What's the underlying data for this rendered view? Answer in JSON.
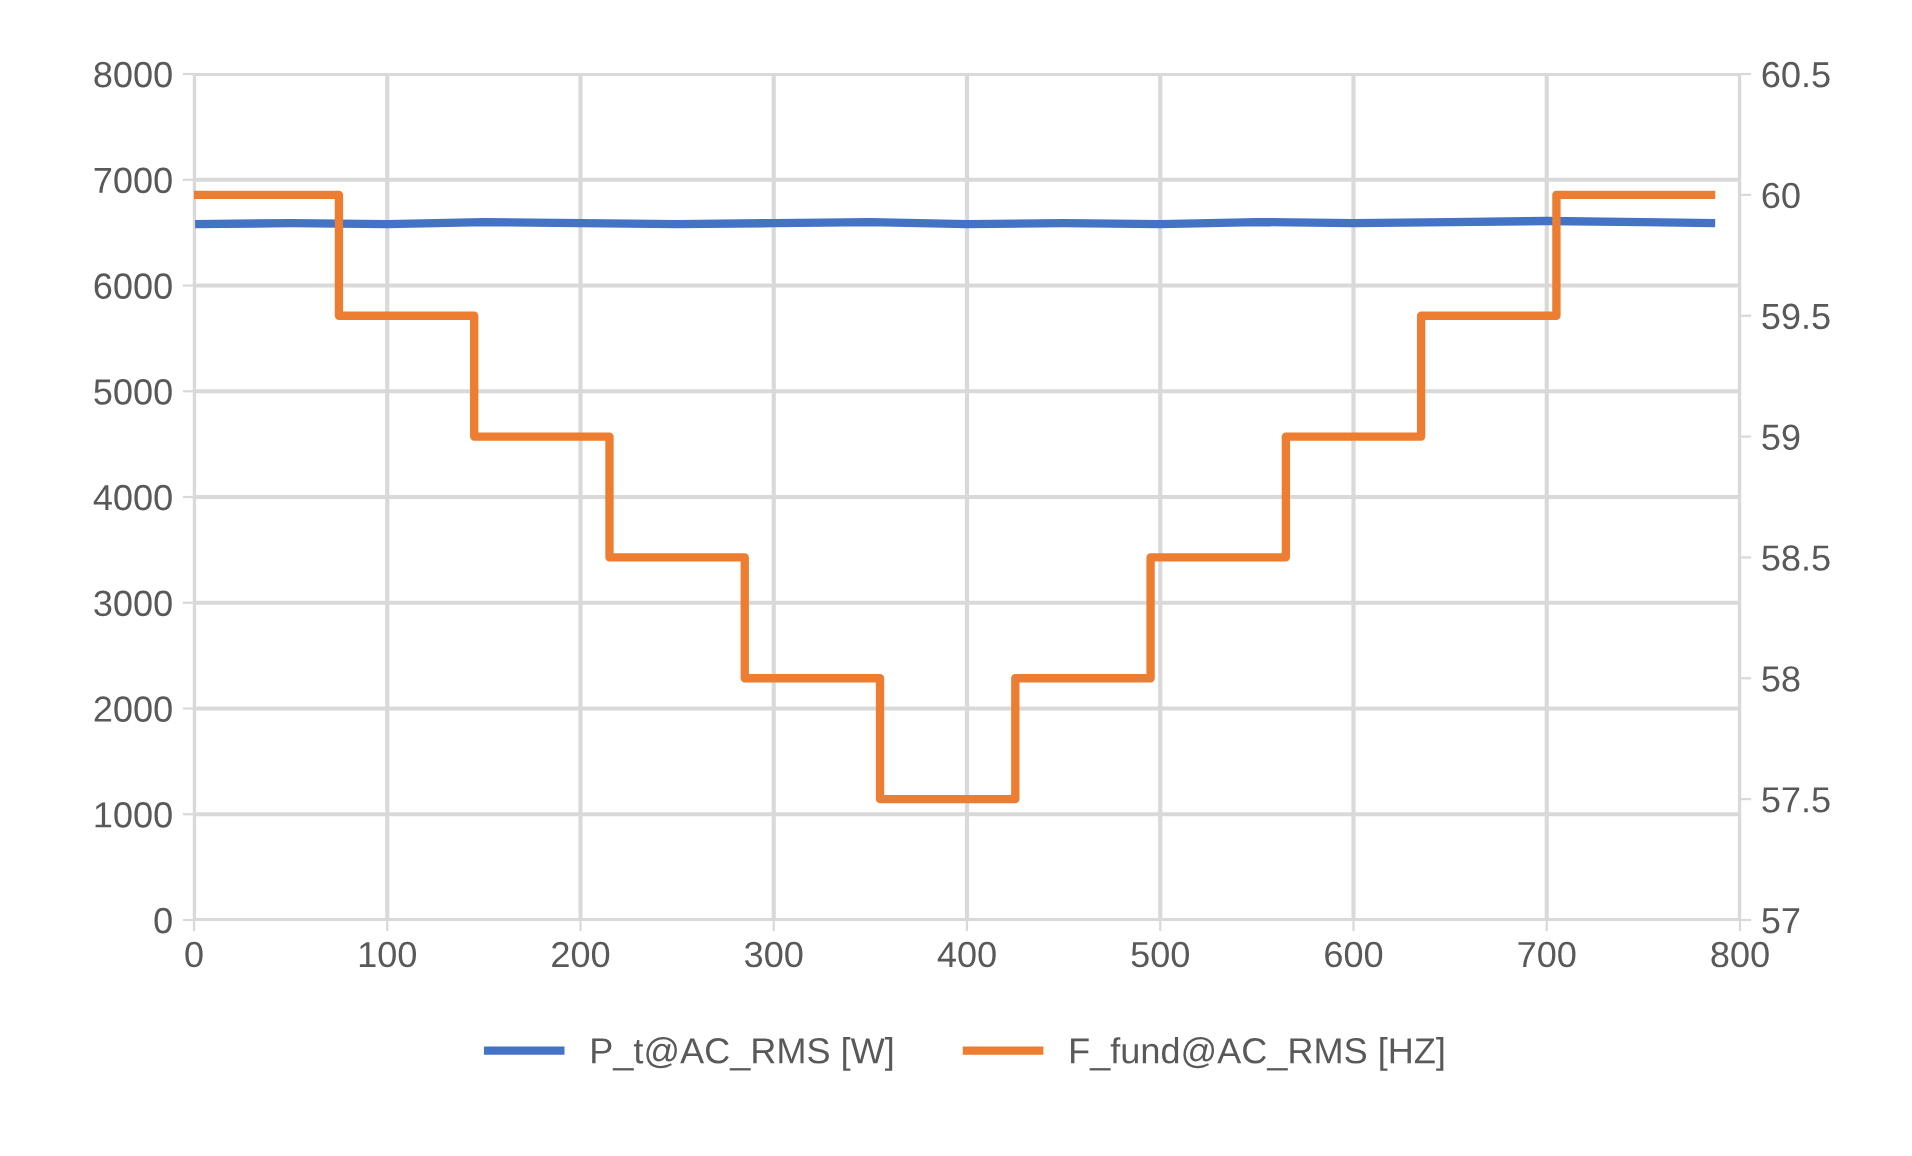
{
  "chart_data": {
    "type": "line",
    "xlim": [
      0,
      800
    ],
    "xticks": [
      0,
      100,
      200,
      300,
      400,
      500,
      600,
      700,
      800
    ],
    "ylim": [
      0,
      8000
    ],
    "yticks": [
      0,
      1000,
      2000,
      3000,
      4000,
      5000,
      6000,
      7000,
      8000
    ],
    "y2lim": [
      57,
      60.5
    ],
    "y2ticks": [
      57,
      57.5,
      58,
      58.5,
      59,
      59.5,
      60,
      60.5
    ],
    "grid": true,
    "legend": "bottom",
    "series": [
      {
        "name": "P_t@AC_RMS [W]",
        "color": "#4472c4",
        "x": [
          0,
          50,
          100,
          150,
          200,
          250,
          300,
          350,
          400,
          450,
          500,
          550,
          600,
          650,
          700,
          750,
          785
        ],
        "values": [
          6580,
          6590,
          6580,
          6600,
          6590,
          6580,
          6590,
          6600,
          6580,
          6590,
          6580,
          6600,
          6590,
          6600,
          6610,
          6600,
          6590
        ]
      },
      {
        "name": "F_fund@AC_RMS [HZ]",
        "color": "#ed7d31",
        "type": "step",
        "axis": "y2",
        "x": [
          0,
          75,
          145,
          215,
          285,
          355,
          425,
          495,
          565,
          635,
          705,
          785
        ],
        "values": [
          60,
          59.5,
          59,
          58.5,
          58,
          57.5,
          58,
          58.5,
          59,
          59.5,
          60,
          60
        ]
      }
    ]
  }
}
